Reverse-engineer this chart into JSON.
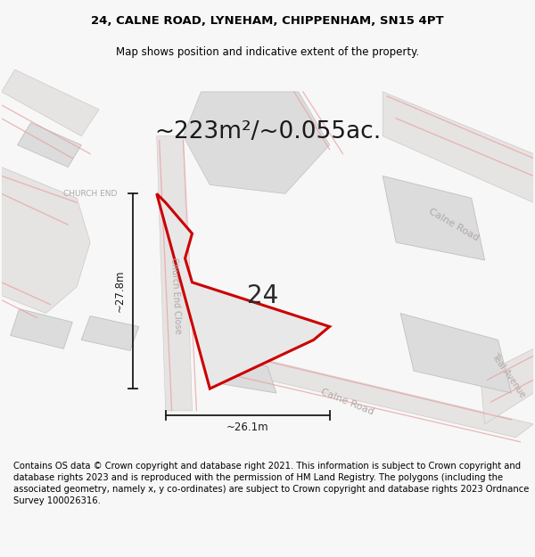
{
  "title_line1": "24, CALNE ROAD, LYNEHAM, CHIPPENHAM, SN15 4PT",
  "title_line2": "Map shows position and indicative extent of the property.",
  "area_text": "~223m²/~0.055ac.",
  "plot_number": "24",
  "dim_height": "~27.8m",
  "dim_width": "~26.1m",
  "label_church_end": "CHURCH END",
  "label_church_end_close": "Church End Close",
  "label_calne_road_top": "Calne Road",
  "label_calne_road_bottom": "Calne Road",
  "label_teal_avenue": "Teal Avenue",
  "footer_text": "Contains OS data © Crown copyright and database right 2021. This information is subject to Crown copyright and database rights 2023 and is reproduced with the permission of HM Land Registry. The polygons (including the associated geometry, namely x, y co-ordinates) are subject to Crown copyright and database rights 2023 Ordnance Survey 100026316.",
  "bg_color": "#f7f7f7",
  "map_bg": "#efefef",
  "plot_fill": "#e8e8e8",
  "plot_edge": "#cc0000",
  "building_fill": "#dcdcdc",
  "building_stroke": "#c0c0c0",
  "road_fill": "#e6e3e3",
  "road_stroke": "#d0c8c8",
  "pink_line": "#e8a0a0",
  "dim_color": "#1a1a1a",
  "church_end_color": "#aaaaaa",
  "road_label_color": "#b0a8a8"
}
